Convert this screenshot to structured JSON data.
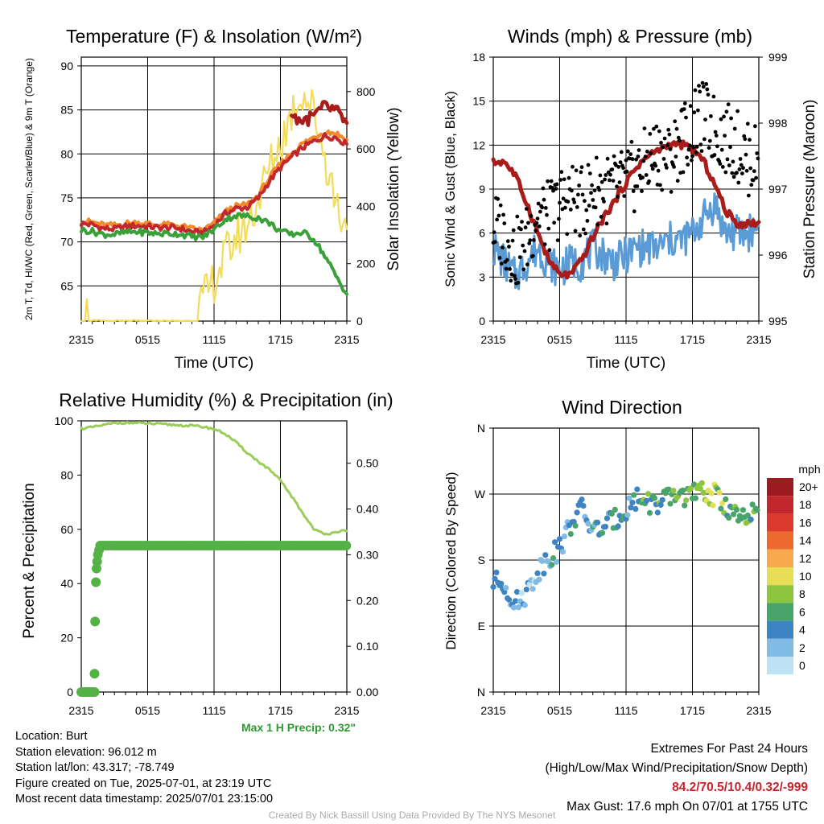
{
  "colors": {
    "temp": "#c1272d",
    "dewpoint": "#3aa13a",
    "heat_index": "#e14b1f",
    "temp_9m": "#f08a2a",
    "insolation": "#f2dc5a",
    "wind": "#5b9bd5",
    "gust": "#000000",
    "pressure": "#a81c1c",
    "rh": "#9acd5a",
    "precip": "#53b146"
  },
  "chart_data": [
    {
      "type": "line",
      "title": "Temperature (F) & Insolation (W/m²)",
      "xlabel": "Time (UTC)",
      "ylabel": "2m T, Td, HI/WC (Red, Green, Scarlet/Blue) & 9m T (Orange)",
      "ylabel_right": "Solar Insolation (Yellow)",
      "x_ticks": [
        "2315",
        "0515",
        "1115",
        "1715",
        "2315"
      ],
      "y_ticks": [
        "65",
        "70",
        "75",
        "80",
        "85",
        "90"
      ],
      "y2_ticks": [
        "0",
        "200",
        "400",
        "600",
        "800"
      ],
      "ylim": [
        61,
        91
      ],
      "y2lim": [
        0,
        920
      ],
      "x_hours": [
        0,
        1,
        2,
        3,
        4,
        5,
        6,
        7,
        8,
        9,
        10,
        11,
        12,
        13,
        14,
        15,
        16,
        17,
        18,
        19,
        20,
        21,
        22,
        23,
        24
      ],
      "series": [
        {
          "name": "2m T (Red)",
          "values": [
            72,
            72.3,
            71.2,
            71.4,
            71.8,
            71.9,
            71.8,
            71.5,
            71.7,
            71.6,
            71.2,
            70.6,
            71.7,
            73.5,
            74.1,
            73.5,
            74.6,
            77.2,
            78.6,
            79.4,
            81.2,
            81,
            82.4,
            82.3,
            80.5
          ]
        },
        {
          "name": "9m T (Orange)",
          "values": [
            72.2,
            72.6,
            71.6,
            71.8,
            72.2,
            72.2,
            72.1,
            71.8,
            72,
            71.9,
            71.5,
            70.9,
            71.9,
            73.7,
            74.3,
            73.8,
            74.9,
            77.6,
            79,
            79.9,
            81.6,
            81.5,
            82.9,
            82.8,
            81
          ]
        },
        {
          "name": "Heat Index (Scarlet)",
          "values": [
            null,
            null,
            null,
            null,
            null,
            null,
            null,
            null,
            null,
            null,
            null,
            null,
            null,
            null,
            null,
            null,
            null,
            null,
            null,
            85,
            83,
            84,
            86,
            85.5,
            82.5
          ]
        },
        {
          "name": "Dewpoint (Green)",
          "values": [
            71.3,
            71.5,
            70.5,
            70.9,
            71.1,
            71.2,
            71.1,
            70.8,
            71,
            71,
            70.6,
            70.1,
            71.4,
            72.8,
            73.2,
            72.8,
            72.9,
            72.3,
            71.1,
            70.4,
            71.4,
            71.2,
            67.7,
            67.2,
            62.5
          ]
        },
        {
          "name": "Solar Insolation (Yellow)",
          "values": [
            50,
            10,
            0,
            0,
            0,
            0,
            0,
            0,
            0,
            0,
            0,
            60,
            150,
            210,
            330,
            300,
            420,
            550,
            620,
            700,
            880,
            740,
            570,
            420,
            270
          ]
        }
      ]
    },
    {
      "type": "line",
      "title": "Winds (mph) & Pressure (mb)",
      "xlabel": "Time (UTC)",
      "ylabel": "Sonic Wind & Gust (Blue, Black)",
      "ylabel_right": "Station Pressure (Maroon)",
      "x_ticks": [
        "2315",
        "0515",
        "1115",
        "1715",
        "2315"
      ],
      "y_ticks": [
        "0",
        "3",
        "6",
        "9",
        "12",
        "15",
        "18"
      ],
      "y2_ticks": [
        "995",
        "996",
        "997",
        "998",
        "999"
      ],
      "ylim": [
        0,
        18
      ],
      "y2lim": [
        995,
        999
      ],
      "x_hours": [
        0,
        1,
        2,
        3,
        4,
        5,
        6,
        7,
        8,
        9,
        10,
        11,
        12,
        13,
        14,
        15,
        16,
        17,
        18,
        19,
        20,
        21,
        22,
        23,
        24
      ],
      "series": [
        {
          "name": "Sonic Wind (Blue)",
          "values": [
            5,
            4,
            3,
            4,
            5,
            4,
            3.5,
            4,
            4,
            5,
            4.5,
            4,
            4.5,
            5,
            5,
            5,
            5.5,
            5.5,
            6,
            7,
            8,
            6,
            6,
            6,
            6.5
          ]
        },
        {
          "name": "Gust (Black)",
          "values": [
            6.5,
            6,
            4.5,
            5.5,
            7.5,
            7,
            8,
            8.5,
            8,
            9,
            9,
            9,
            9.5,
            10,
            11,
            11.5,
            11,
            12.5,
            13,
            14,
            13,
            12.5,
            12,
            11,
            11
          ]
        },
        {
          "name": "Station Pressure (Maroon)",
          "values": [
            997.3,
            997.6,
            997.2,
            996.8,
            996.4,
            995.8,
            995.7,
            995.6,
            995.9,
            996.3,
            996.6,
            996.8,
            997.1,
            997.4,
            997.5,
            997.6,
            997.7,
            997.7,
            997.6,
            997.5,
            997.1,
            996.6,
            996.4,
            996.5,
            996.5
          ]
        }
      ]
    },
    {
      "type": "line",
      "title": "Relative Humidity (%) & Precipitation (in)",
      "ylabel": "Percent & Precipitation",
      "x_ticks": [
        "2315",
        "0515",
        "1115",
        "1715",
        "2315"
      ],
      "y_ticks": [
        "0",
        "20",
        "40",
        "60",
        "80",
        "100"
      ],
      "y2_ticks": [
        "0.00",
        "0.10",
        "0.20",
        "0.30",
        "0.40",
        "0.50"
      ],
      "ylim": [
        0,
        100
      ],
      "y2lim": [
        0,
        0.5926
      ],
      "x_hours": [
        0,
        1,
        2,
        3,
        4,
        5,
        6,
        7,
        8,
        9,
        10,
        11,
        12,
        13,
        14,
        15,
        16,
        17,
        18,
        19,
        20,
        21,
        22,
        23,
        24
      ],
      "series": [
        {
          "name": "Relative Humidity",
          "values": [
            97,
            97.5,
            98.5,
            99.3,
            99.4,
            99.2,
            99,
            98.8,
            98.6,
            98.3,
            98.2,
            98,
            97,
            96,
            92,
            88,
            85,
            82,
            79,
            72,
            66,
            60,
            55,
            62,
            58
          ]
        },
        {
          "name": "Precipitation",
          "values": [
            0,
            0,
            0.32,
            0.32,
            0.32,
            0.32,
            0.32,
            0.32,
            0.32,
            0.32,
            0.32,
            0.32,
            0.32,
            0.32,
            0.32,
            0.32,
            0.32,
            0.32,
            0.32,
            0.32,
            0.32,
            0.32,
            0.32,
            0.32,
            0.32
          ]
        }
      ]
    },
    {
      "type": "scatter",
      "title": "Wind Direction",
      "ylabel": "Direction (Colored By Speed)",
      "x_ticks": [
        "2315",
        "0515",
        "1115",
        "1715",
        "2315"
      ],
      "y_ticks": [
        "N",
        "E",
        "S",
        "W",
        "N"
      ],
      "legend_title": "mph",
      "legend_labels": [
        "20+",
        "18",
        "16",
        "14",
        "12",
        "10",
        "8",
        "6",
        "4",
        "2",
        "0"
      ],
      "legend_colors": [
        "#9b1b1e",
        "#c1272d",
        "#dc3a2c",
        "#ec6a2e",
        "#f7a94c",
        "#e7de57",
        "#8cc63f",
        "#49a46b",
        "#3f84c2",
        "#7fbbe5",
        "#bde3f5"
      ],
      "x_hours": [
        0,
        1,
        2,
        3,
        4,
        5,
        6,
        7,
        8,
        9,
        10,
        11,
        12,
        13,
        14,
        15,
        16,
        17,
        18,
        19,
        20,
        21,
        22,
        23,
        24
      ],
      "direction_deg": [
        150,
        148,
        120,
        135,
        165,
        185,
        195,
        230,
        250,
        220,
        225,
        235,
        250,
        265,
        260,
        255,
        265,
        270,
        268,
        272,
        268,
        255,
        240,
        230,
        258
      ],
      "speed_mph": [
        3,
        3,
        2,
        2,
        3,
        4,
        3,
        4,
        3,
        4,
        4,
        5,
        4,
        6,
        6,
        6,
        6,
        7,
        7,
        9,
        8,
        6,
        6,
        6,
        7
      ]
    }
  ],
  "precip_note": "Max 1 H Precip: 0.32\"",
  "footer": {
    "location": "Location: Burt",
    "elevation": "Station elevation: 96.012 m",
    "latlon": "Station lat/lon: 43.317; -78.749",
    "created": "Figure created on Tue, 2025-07-01, at 23:19 UTC",
    "timestamp": "Most recent data timestamp: 2025/07/01 23:15:00",
    "extremes_title": "Extremes For Past 24 Hours",
    "extremes_legend": "(High/Low/Max Wind/Precipitation/Snow Depth)",
    "extremes_values": "84.2/70.5/10.4/0.32/-999",
    "max_gust": "Max Gust: 17.6 mph On 07/01 at 1755 UTC",
    "credit": "Created By Nick Bassill Using Data Provided By The NYS Mesonet"
  }
}
